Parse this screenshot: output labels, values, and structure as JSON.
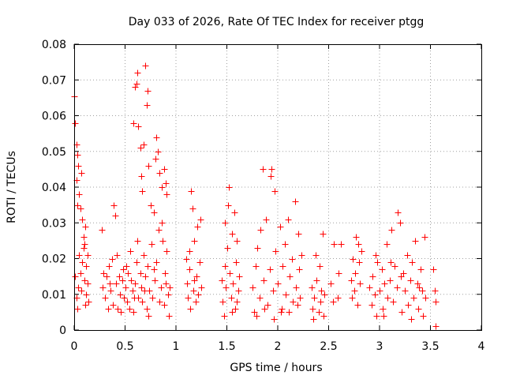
{
  "chart_data": {
    "type": "scatter",
    "title": "Day 033 of 2026, Rate Of TEC Index for receiver ptgg",
    "xlabel": "GPS time / hours",
    "ylabel": "ROTI / TECUs",
    "xlim": [
      0,
      4
    ],
    "ylim": [
      0,
      0.08
    ],
    "xticks": [
      "0",
      "0.5",
      "1",
      "1.5",
      "2",
      "2.5",
      "3",
      "3.5",
      "4"
    ],
    "yticks": [
      "0",
      "0.01",
      "0.02",
      "0.03",
      "0.04",
      "0.05",
      "0.06",
      "0.07",
      "0.08"
    ],
    "grid": true,
    "marker": "+",
    "color": "#ff0000",
    "series": [
      {
        "name": "ROTI",
        "points": [
          [
            0.0,
            0.0655
          ],
          [
            0.01,
            0.058
          ],
          [
            0.02,
            0.042
          ],
          [
            0.02,
            0.052
          ],
          [
            0.03,
            0.049
          ],
          [
            0.03,
            0.035
          ],
          [
            0.04,
            0.046
          ],
          [
            0.05,
            0.038
          ],
          [
            0.06,
            0.034
          ],
          [
            0.07,
            0.044
          ],
          [
            0.08,
            0.031
          ],
          [
            0.09,
            0.026
          ],
          [
            0.1,
            0.024
          ],
          [
            0.11,
            0.029
          ],
          [
            0.12,
            0.018
          ],
          [
            0.01,
            0.015
          ],
          [
            0.02,
            0.009
          ],
          [
            0.03,
            0.006
          ],
          [
            0.04,
            0.012
          ],
          [
            0.05,
            0.021
          ],
          [
            0.06,
            0.016
          ],
          [
            0.07,
            0.011
          ],
          [
            0.08,
            0.019
          ],
          [
            0.1,
            0.014
          ],
          [
            0.11,
            0.007
          ],
          [
            0.12,
            0.01
          ],
          [
            0.13,
            0.013
          ],
          [
            0.14,
            0.008
          ],
          [
            0.13,
            0.021
          ],
          [
            0.09,
            0.023
          ],
          [
            0.27,
            0.028
          ],
          [
            0.28,
            0.012
          ],
          [
            0.3,
            0.009
          ],
          [
            0.32,
            0.015
          ],
          [
            0.34,
            0.018
          ],
          [
            0.36,
            0.011
          ],
          [
            0.38,
            0.007
          ],
          [
            0.39,
            0.035
          ],
          [
            0.4,
            0.032
          ],
          [
            0.41,
            0.013
          ],
          [
            0.42,
            0.021
          ],
          [
            0.43,
            0.006
          ],
          [
            0.45,
            0.01
          ],
          [
            0.47,
            0.014
          ],
          [
            0.48,
            0.017
          ],
          [
            0.5,
            0.012
          ],
          [
            0.52,
            0.008
          ],
          [
            0.53,
            0.016
          ],
          [
            0.55,
            0.022
          ],
          [
            0.57,
            0.011
          ],
          [
            0.58,
            0.005
          ],
          [
            0.6,
            0.013
          ],
          [
            0.62,
            0.025
          ],
          [
            0.63,
            0.009
          ],
          [
            0.29,
            0.016
          ],
          [
            0.33,
            0.006
          ],
          [
            0.37,
            0.02
          ],
          [
            0.44,
            0.015
          ],
          [
            0.46,
            0.005
          ],
          [
            0.51,
            0.018
          ],
          [
            0.54,
            0.006
          ],
          [
            0.56,
            0.014
          ],
          [
            0.59,
            0.009
          ],
          [
            0.61,
            0.019
          ],
          [
            0.35,
            0.013
          ],
          [
            0.49,
            0.009
          ],
          [
            0.58,
            0.058
          ],
          [
            0.6,
            0.068
          ],
          [
            0.61,
            0.069
          ],
          [
            0.62,
            0.072
          ],
          [
            0.63,
            0.057
          ],
          [
            0.65,
            0.051
          ],
          [
            0.66,
            0.043
          ],
          [
            0.67,
            0.039
          ],
          [
            0.68,
            0.052
          ],
          [
            0.7,
            0.074
          ],
          [
            0.71,
            0.063
          ],
          [
            0.72,
            0.067
          ],
          [
            0.73,
            0.046
          ],
          [
            0.75,
            0.035
          ],
          [
            0.78,
            0.033
          ],
          [
            0.8,
            0.048
          ],
          [
            0.81,
            0.054
          ],
          [
            0.82,
            0.05
          ],
          [
            0.84,
            0.044
          ],
          [
            0.86,
            0.04
          ],
          [
            0.88,
            0.045
          ],
          [
            0.9,
            0.041
          ],
          [
            0.91,
            0.038
          ],
          [
            0.65,
            0.016
          ],
          [
            0.66,
            0.012
          ],
          [
            0.67,
            0.008
          ],
          [
            0.68,
            0.021
          ],
          [
            0.7,
            0.015
          ],
          [
            0.71,
            0.006
          ],
          [
            0.72,
            0.018
          ],
          [
            0.74,
            0.011
          ],
          [
            0.76,
            0.024
          ],
          [
            0.77,
            0.009
          ],
          [
            0.79,
            0.014
          ],
          [
            0.81,
            0.019
          ],
          [
            0.83,
            0.028
          ],
          [
            0.85,
            0.012
          ],
          [
            0.86,
            0.03
          ],
          [
            0.88,
            0.007
          ],
          [
            0.89,
            0.016
          ],
          [
            0.91,
            0.022
          ],
          [
            0.92,
            0.01
          ],
          [
            0.93,
            0.004
          ],
          [
            0.94,
            0.012
          ],
          [
            0.69,
            0.011
          ],
          [
            0.73,
            0.004
          ],
          [
            0.78,
            0.017
          ],
          [
            0.84,
            0.008
          ],
          [
            0.87,
            0.025
          ],
          [
            0.9,
            0.013
          ],
          [
            1.1,
            0.02
          ],
          [
            1.11,
            0.013
          ],
          [
            1.12,
            0.009
          ],
          [
            1.13,
            0.017
          ],
          [
            1.14,
            0.006
          ],
          [
            1.15,
            0.039
          ],
          [
            1.16,
            0.034
          ],
          [
            1.17,
            0.011
          ],
          [
            1.18,
            0.025
          ],
          [
            1.19,
            0.008
          ],
          [
            1.2,
            0.015
          ],
          [
            1.21,
            0.029
          ],
          [
            1.22,
            0.01
          ],
          [
            1.23,
            0.019
          ],
          [
            1.24,
            0.031
          ],
          [
            1.25,
            0.012
          ],
          [
            1.13,
            0.022
          ],
          [
            1.18,
            0.014
          ],
          [
            1.45,
            0.014
          ],
          [
            1.46,
            0.008
          ],
          [
            1.47,
            0.004
          ],
          [
            1.48,
            0.018
          ],
          [
            1.49,
            0.012
          ],
          [
            1.5,
            0.023
          ],
          [
            1.51,
            0.035
          ],
          [
            1.52,
            0.04
          ],
          [
            1.53,
            0.016
          ],
          [
            1.54,
            0.009
          ],
          [
            1.55,
            0.027
          ],
          [
            1.56,
            0.013
          ],
          [
            1.57,
            0.033
          ],
          [
            1.58,
            0.006
          ],
          [
            1.59,
            0.019
          ],
          [
            1.6,
            0.025
          ],
          [
            1.61,
            0.011
          ],
          [
            1.62,
            0.015
          ],
          [
            1.48,
            0.03
          ],
          [
            1.55,
            0.005
          ],
          [
            1.6,
            0.008
          ],
          [
            1.75,
            0.012
          ],
          [
            1.77,
            0.005
          ],
          [
            1.78,
            0.018
          ],
          [
            1.8,
            0.023
          ],
          [
            1.82,
            0.009
          ],
          [
            1.83,
            0.028
          ],
          [
            1.85,
            0.045
          ],
          [
            1.86,
            0.014
          ],
          [
            1.88,
            0.031
          ],
          [
            1.9,
            0.007
          ],
          [
            1.92,
            0.017
          ],
          [
            1.93,
            0.043
          ],
          [
            1.94,
            0.045
          ],
          [
            1.95,
            0.011
          ],
          [
            1.97,
            0.039
          ],
          [
            1.98,
            0.022
          ],
          [
            2.0,
            0.013
          ],
          [
            2.02,
            0.029
          ],
          [
            2.03,
            0.005
          ],
          [
            2.05,
            0.018
          ],
          [
            2.07,
            0.024
          ],
          [
            2.08,
            0.01
          ],
          [
            2.1,
            0.031
          ],
          [
            2.12,
            0.015
          ],
          [
            2.14,
            0.02
          ],
          [
            2.15,
            0.008
          ],
          [
            2.17,
            0.036
          ],
          [
            2.18,
            0.012
          ],
          [
            2.2,
            0.027
          ],
          [
            2.21,
            0.017
          ],
          [
            2.22,
            0.009
          ],
          [
            2.23,
            0.021
          ],
          [
            1.79,
            0.004
          ],
          [
            1.87,
            0.006
          ],
          [
            1.96,
            0.003
          ],
          [
            2.04,
            0.006
          ],
          [
            2.11,
            0.005
          ],
          [
            2.19,
            0.007
          ],
          [
            2.33,
            0.012
          ],
          [
            2.34,
            0.006
          ],
          [
            2.35,
            0.003
          ],
          [
            2.36,
            0.009
          ],
          [
            2.37,
            0.021
          ],
          [
            2.38,
            0.014
          ],
          [
            2.4,
            0.005
          ],
          [
            2.41,
            0.018
          ],
          [
            2.42,
            0.008
          ],
          [
            2.43,
            0.011
          ],
          [
            2.44,
            0.027
          ],
          [
            2.45,
            0.004
          ],
          [
            2.46,
            0.01
          ],
          [
            2.52,
            0.013
          ],
          [
            2.54,
            0.008
          ],
          [
            2.55,
            0.024
          ],
          [
            2.62,
            0.024
          ],
          [
            2.6,
            0.016
          ],
          [
            2.59,
            0.009
          ],
          [
            2.72,
            0.014
          ],
          [
            2.73,
            0.009
          ],
          [
            2.74,
            0.02
          ],
          [
            2.76,
            0.016
          ],
          [
            2.77,
            0.026
          ],
          [
            2.78,
            0.007
          ],
          [
            2.8,
            0.019
          ],
          [
            2.81,
            0.013
          ],
          [
            2.82,
            0.022
          ],
          [
            2.75,
            0.011
          ],
          [
            2.79,
            0.024
          ],
          [
            2.9,
            0.012
          ],
          [
            2.92,
            0.007
          ],
          [
            2.93,
            0.015
          ],
          [
            2.95,
            0.01
          ],
          [
            2.97,
            0.004
          ],
          [
            2.98,
            0.019
          ],
          [
            3.0,
            0.011
          ],
          [
            3.02,
            0.017
          ],
          [
            3.03,
            0.006
          ],
          [
            3.05,
            0.013
          ],
          [
            3.07,
            0.024
          ],
          [
            3.08,
            0.009
          ],
          [
            3.1,
            0.014
          ],
          [
            3.12,
            0.028
          ],
          [
            3.13,
            0.008
          ],
          [
            3.15,
            0.018
          ],
          [
            3.17,
            0.012
          ],
          [
            3.18,
            0.033
          ],
          [
            3.2,
            0.03
          ],
          [
            3.22,
            0.005
          ],
          [
            3.23,
            0.016
          ],
          [
            3.25,
            0.011
          ],
          [
            3.27,
            0.021
          ],
          [
            3.28,
            0.007
          ],
          [
            3.3,
            0.014
          ],
          [
            3.32,
            0.019
          ],
          [
            3.33,
            0.009
          ],
          [
            3.35,
            0.025
          ],
          [
            3.37,
            0.013
          ],
          [
            3.38,
            0.006
          ],
          [
            3.4,
            0.017
          ],
          [
            3.42,
            0.011
          ],
          [
            3.43,
            0.004
          ],
          [
            3.44,
            0.026
          ],
          [
            3.45,
            0.009
          ],
          [
            2.96,
            0.021
          ],
          [
            3.04,
            0.004
          ],
          [
            3.11,
            0.019
          ],
          [
            3.21,
            0.015
          ],
          [
            3.31,
            0.003
          ],
          [
            3.39,
            0.012
          ],
          [
            3.53,
            0.017
          ],
          [
            3.54,
            0.011
          ],
          [
            3.55,
            0.008
          ],
          [
            3.55,
            0.001
          ]
        ]
      }
    ]
  }
}
